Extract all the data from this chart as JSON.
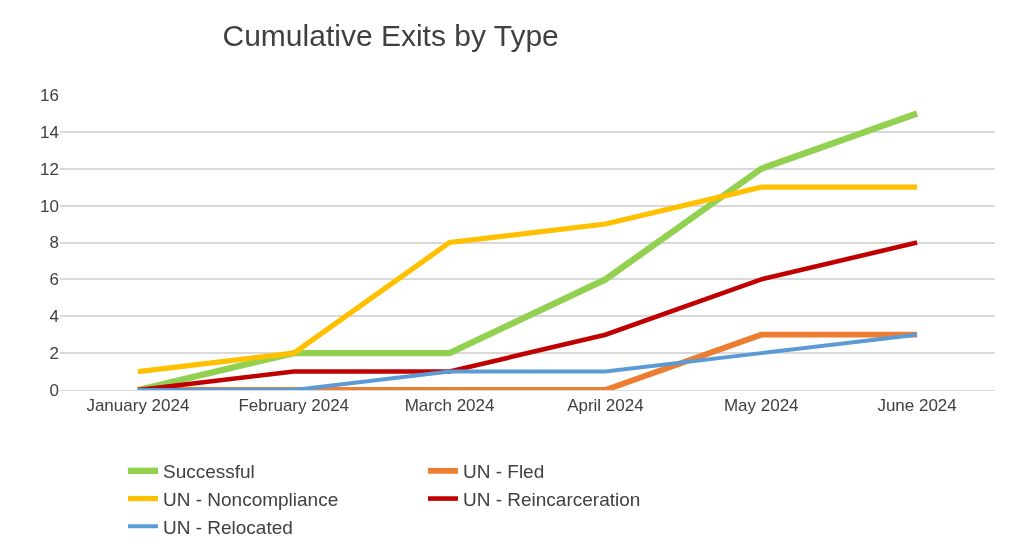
{
  "chart_data": {
    "type": "line",
    "title": "Cumulative Exits by Type",
    "categories": [
      "January 2024",
      "February 2024",
      "March 2024",
      "April 2024",
      "May 2024",
      "June 2024"
    ],
    "series": [
      {
        "name": "Successful",
        "color": "#92d050",
        "values": [
          0,
          2,
          2,
          6,
          12,
          15
        ]
      },
      {
        "name": "UN - Fled",
        "color": "#ed7d31",
        "values": [
          0,
          0,
          0,
          0,
          3,
          3
        ]
      },
      {
        "name": "UN - Noncompliance",
        "color": "#ffc000",
        "values": [
          1,
          2,
          8,
          9,
          11,
          11
        ]
      },
      {
        "name": "UN - Reincarceration",
        "color": "#c00000",
        "values": [
          0,
          1,
          1,
          3,
          6,
          8
        ]
      },
      {
        "name": "UN - Relocated",
        "color": "#5b9bd5",
        "values": [
          0,
          0,
          1,
          1,
          2,
          3
        ]
      }
    ],
    "ylim": [
      0,
      16
    ],
    "yticks": [
      0,
      2,
      4,
      6,
      8,
      10,
      12,
      14,
      16
    ],
    "grid": "y",
    "legend": "bottom",
    "marker": "none",
    "line_style": "solid"
  }
}
